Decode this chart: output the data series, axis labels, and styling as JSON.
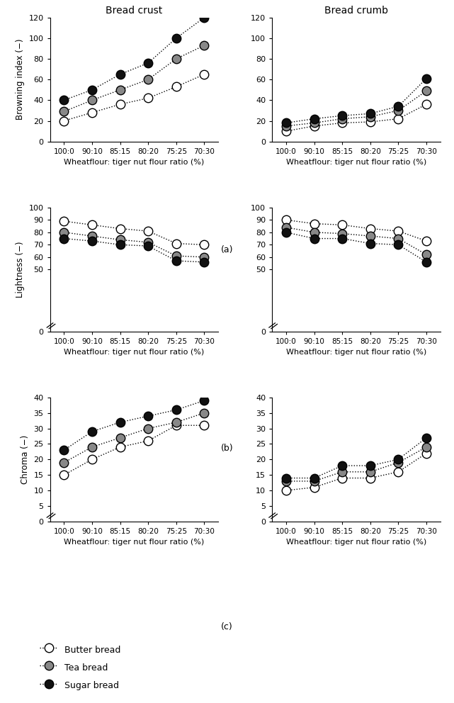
{
  "x_labels": [
    "100:0",
    "90:10",
    "85:15",
    "80:20",
    "75:25",
    "70:30"
  ],
  "x_vals": [
    0,
    1,
    2,
    3,
    4,
    5
  ],
  "browning_crust": {
    "butter": [
      20,
      28,
      36,
      42,
      53,
      65
    ],
    "tea": [
      29,
      40,
      50,
      60,
      80,
      93
    ],
    "sugar": [
      40,
      50,
      65,
      76,
      100,
      120
    ]
  },
  "browning_crumb": {
    "butter": [
      10,
      15,
      18,
      19,
      22,
      36
    ],
    "tea": [
      15,
      18,
      22,
      24,
      30,
      49
    ],
    "sugar": [
      18,
      22,
      25,
      27,
      34,
      61
    ]
  },
  "lightness_crust": {
    "butter": [
      89,
      86,
      83,
      81,
      71,
      70
    ],
    "tea": [
      80,
      77,
      74,
      72,
      61,
      60
    ],
    "sugar": [
      75,
      73,
      70,
      69,
      57,
      56
    ]
  },
  "lightness_crumb": {
    "butter": [
      90,
      87,
      86,
      83,
      81,
      73
    ],
    "tea": [
      84,
      80,
      79,
      77,
      75,
      62
    ],
    "sugar": [
      80,
      75,
      75,
      71,
      70,
      56
    ]
  },
  "chroma_crust": {
    "butter": [
      15,
      20,
      24,
      26,
      31,
      31
    ],
    "tea": [
      19,
      24,
      27,
      30,
      32,
      35
    ],
    "sugar": [
      23,
      29,
      32,
      34,
      36,
      39
    ]
  },
  "chroma_crumb": {
    "butter": [
      10,
      11,
      14,
      14,
      16,
      22
    ],
    "tea": [
      13,
      13,
      16,
      16,
      19,
      24
    ],
    "sugar": [
      14,
      14,
      18,
      18,
      20,
      27
    ]
  },
  "colors": {
    "butter": "#ffffff",
    "tea": "#888888",
    "sugar": "#111111"
  },
  "edge_color": "#000000",
  "line_color": "#000000",
  "marker_size": 9,
  "linewidth": 1.0,
  "subplot_titles": [
    "Bread crust",
    "Bread crumb"
  ],
  "row_labels": [
    "(a)",
    "(b)",
    "(c)"
  ],
  "ylabels": [
    "Browning index (−)",
    "Lightness (−)",
    "Chroma (−)"
  ],
  "xlabel": "Wheatflour: tiger nut flour ratio (%)",
  "legend_labels": [
    "Butter bread",
    "Tea bread",
    "Sugar bread"
  ]
}
